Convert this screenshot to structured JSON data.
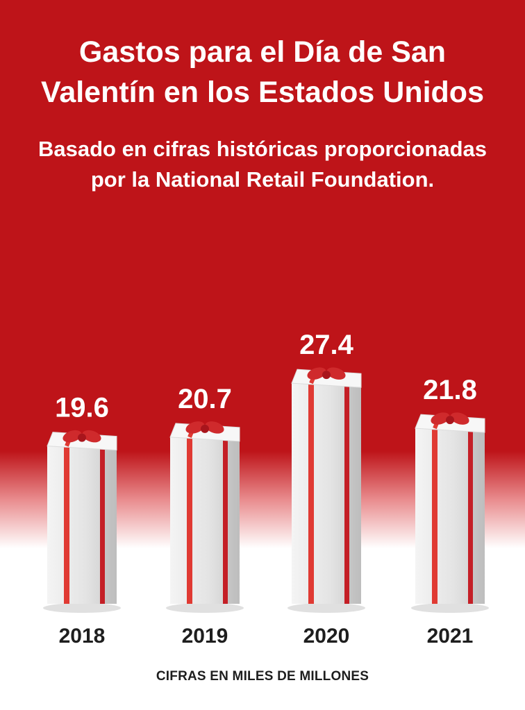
{
  "title_line1": "Gastos para el Día de San",
  "title_line2": "Valentín en los Estados Unidos",
  "subtitle_line1": "Basado en cifras históricas proporcionadas",
  "subtitle_line2": "por la National Retail Foundation.",
  "footnote": "CIFRAS EN MILES DE MILLONES",
  "colors": {
    "background_red": "#be1419",
    "ribbon": "#e03a33",
    "box_face": "#e6e6e6",
    "text_dark": "#1e1e1e"
  },
  "chart_data": {
    "type": "bar",
    "categories": [
      "2018",
      "2019",
      "2020",
      "2021"
    ],
    "values": [
      19.6,
      20.7,
      27.4,
      21.8
    ],
    "value_labels": [
      "19.6",
      "20.7",
      "27.4",
      "21.8"
    ],
    "unit": "CIFRAS EN MILES DE MILLONES",
    "bar_style": "gift-box-with-ribbon",
    "grid": false,
    "legend": "none"
  }
}
